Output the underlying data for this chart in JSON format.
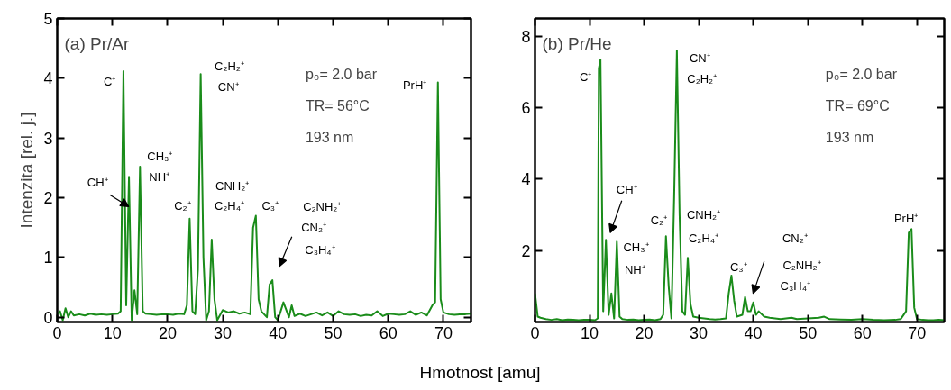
{
  "chart_data": [
    {
      "type": "line",
      "title": "(a)  Pr/Ar",
      "xlabel": "Hmotnost [amu]",
      "ylabel": "Intenzita [rel. j.]",
      "xlim": [
        0,
        75
      ],
      "ylim": [
        -0.08,
        5
      ],
      "xticks": [
        0,
        10,
        20,
        30,
        40,
        50,
        60,
        70
      ],
      "yticks": [
        0,
        1,
        2,
        3,
        4,
        5
      ],
      "grid": false,
      "marker": "none",
      "line_style": "solid",
      "series": [
        {
          "color": "#1a8c1a",
          "x": [
            0,
            0.5,
            1,
            1.5,
            2,
            2.5,
            3,
            4,
            5,
            6,
            7,
            8,
            9,
            10,
            11,
            11.5,
            12,
            12.5,
            13,
            13.5,
            14,
            14.5,
            15,
            15.5,
            16,
            17,
            18,
            19,
            20,
            21,
            22,
            23,
            23.5,
            24,
            24.5,
            25,
            25.5,
            26,
            26.5,
            27,
            27.5,
            28,
            28.5,
            29,
            30,
            31,
            32,
            33,
            34,
            35,
            35.5,
            36,
            36.5,
            37,
            38,
            38.5,
            39,
            39.5,
            40,
            41,
            42,
            42.5,
            43,
            44,
            45,
            46,
            47,
            48,
            49,
            50,
            51,
            52,
            53,
            54,
            55,
            56,
            57,
            58,
            59,
            60,
            61,
            62,
            63,
            64,
            65,
            66,
            67,
            68,
            68.5,
            69,
            69.5,
            70,
            71,
            72,
            73,
            74,
            75
          ],
          "values": [
            0.05,
            0.1,
            -0.05,
            0.15,
            0.0,
            0.1,
            0.03,
            0.05,
            0.03,
            0.06,
            0.04,
            0.05,
            0.04,
            0.05,
            0.06,
            0.1,
            4.12,
            0.2,
            2.35,
            -0.05,
            0.45,
            0.05,
            2.52,
            0.1,
            0.06,
            0.05,
            0.04,
            0.05,
            0.05,
            0.04,
            0.06,
            0.05,
            0.2,
            1.65,
            0.1,
            0.05,
            0.8,
            4.07,
            1.0,
            -0.05,
            0.1,
            1.3,
            0.3,
            -0.05,
            0.12,
            0.08,
            0.1,
            0.06,
            0.08,
            0.05,
            1.5,
            1.7,
            0.3,
            0.1,
            0.0,
            0.55,
            0.62,
            0.0,
            -0.05,
            0.25,
            0.0,
            0.2,
            0.02,
            0.06,
            0.02,
            0.05,
            0.08,
            0.03,
            0.08,
            0.02,
            0.1,
            0.05,
            0.04,
            0.05,
            0.02,
            0.04,
            0.03,
            0.1,
            0.02,
            0.06,
            0.05,
            0.04,
            0.05,
            0.1,
            0.04,
            0.08,
            0.03,
            0.2,
            0.25,
            3.93,
            0.3,
            0.08,
            0.05,
            0.04,
            0.05,
            0.05,
            0.06
          ]
        }
      ],
      "annotations": [
        "p₀= 2.0 bar",
        "TR= 56°C",
        "193 nm",
        {
          "text": "C⁺",
          "x": 12,
          "y": 4.12
        },
        {
          "text": "C₂H₂⁺",
          "x": 26,
          "y": 4.07
        },
        {
          "text": "CN⁺",
          "x": 26,
          "y": 4.07
        },
        {
          "text": "CH₃⁺",
          "x": 15,
          "y": 2.52
        },
        {
          "text": "NH⁺",
          "x": 15,
          "y": 2.52
        },
        {
          "text": "CH⁺",
          "x": 13,
          "y": 2.35
        },
        {
          "text": "C₂⁺",
          "x": 24,
          "y": 1.65
        },
        "CNH₂⁺",
        {
          "text": "C₂H₄⁺",
          "x": 28,
          "y": 1.3
        },
        {
          "text": "C₃⁺",
          "x": 36,
          "y": 1.7
        },
        "C₂NH₂⁺",
        "CN₂⁺",
        "C₃H₄⁺",
        {
          "text": "PrH⁺",
          "x": 69,
          "y": 3.93
        }
      ]
    },
    {
      "type": "line",
      "title": "(b) Pr/He",
      "xlim": [
        0,
        75
      ],
      "ylim": [
        0,
        8.5
      ],
      "xticks": [
        0,
        10,
        20,
        30,
        40,
        50,
        60,
        70
      ],
      "yticks": [
        2,
        4,
        6,
        8
      ],
      "grid": false,
      "marker": "none",
      "line_style": "solid",
      "series": [
        {
          "color": "#1a8c1a",
          "x": [
            0,
            0.5,
            1,
            2,
            3,
            4,
            5,
            6,
            7,
            8,
            9,
            10,
            11,
            11.5,
            11.7,
            12,
            12.5,
            13,
            13.5,
            14,
            14.5,
            15,
            15.5,
            16,
            17,
            18,
            19,
            20,
            21,
            22,
            23,
            23.5,
            24,
            24.5,
            25,
            25.5,
            26,
            26.5,
            27,
            27.5,
            28,
            28.5,
            29,
            30,
            31,
            32,
            33,
            34,
            35,
            35.5,
            36,
            36.5,
            37,
            38,
            38.5,
            39,
            39.5,
            40,
            40.5,
            41,
            42,
            43,
            44,
            45,
            46,
            47,
            48,
            50,
            52,
            53,
            54,
            56,
            58,
            60,
            62,
            64,
            66,
            67,
            68,
            68.5,
            69,
            69.5,
            70,
            71,
            72,
            73,
            74,
            75
          ],
          "values": [
            0.8,
            0.15,
            0.12,
            0.08,
            0.06,
            0.08,
            0.05,
            0.07,
            0.06,
            0.05,
            0.06,
            0.06,
            0.05,
            0.1,
            7.1,
            7.35,
            0.3,
            2.3,
            0.2,
            0.8,
            0.1,
            2.25,
            0.15,
            0.08,
            0.06,
            0.07,
            0.05,
            0.06,
            0.07,
            0.05,
            0.08,
            0.2,
            2.4,
            1.0,
            0.1,
            3.5,
            7.6,
            3.0,
            0.3,
            0.2,
            1.8,
            0.5,
            0.15,
            0.12,
            0.1,
            0.08,
            0.07,
            0.08,
            0.1,
            0.8,
            1.3,
            0.6,
            0.15,
            0.2,
            0.7,
            0.3,
            0.3,
            0.55,
            0.2,
            0.3,
            0.15,
            0.12,
            0.1,
            0.08,
            0.1,
            0.12,
            0.08,
            0.1,
            0.12,
            0.15,
            0.08,
            0.07,
            0.06,
            0.08,
            0.06,
            0.05,
            0.06,
            0.08,
            0.3,
            2.5,
            2.6,
            0.4,
            0.08,
            0.06,
            0.05,
            0.05,
            0.06,
            0.05
          ]
        }
      ],
      "annotations": [
        "p₀= 2.0 bar",
        "TR= 69°C",
        "193 nm",
        {
          "text": "C⁺",
          "x": 12,
          "y": 7.35
        },
        {
          "text": "CN⁺",
          "x": 26,
          "y": 7.6
        },
        {
          "text": "C₂H₂⁺",
          "x": 26,
          "y": 7.6
        },
        "CH⁺",
        {
          "text": "CH₃⁺",
          "x": 15,
          "y": 2.25
        },
        {
          "text": "NH⁺",
          "x": 15,
          "y": 2.25
        },
        {
          "text": "C₂⁺",
          "x": 24,
          "y": 2.4
        },
        "CNH₂⁺",
        {
          "text": "C₂H₄⁺",
          "x": 28,
          "y": 1.8
        },
        {
          "text": "C₃⁺",
          "x": 36,
          "y": 1.3
        },
        "CN₂⁺",
        "C₂NH₂⁺",
        {
          "text": "C₃H₄⁺",
          "x": 40,
          "y": 0.55
        },
        {
          "text": "PrH⁺",
          "x": 69,
          "y": 2.6
        }
      ]
    }
  ]
}
